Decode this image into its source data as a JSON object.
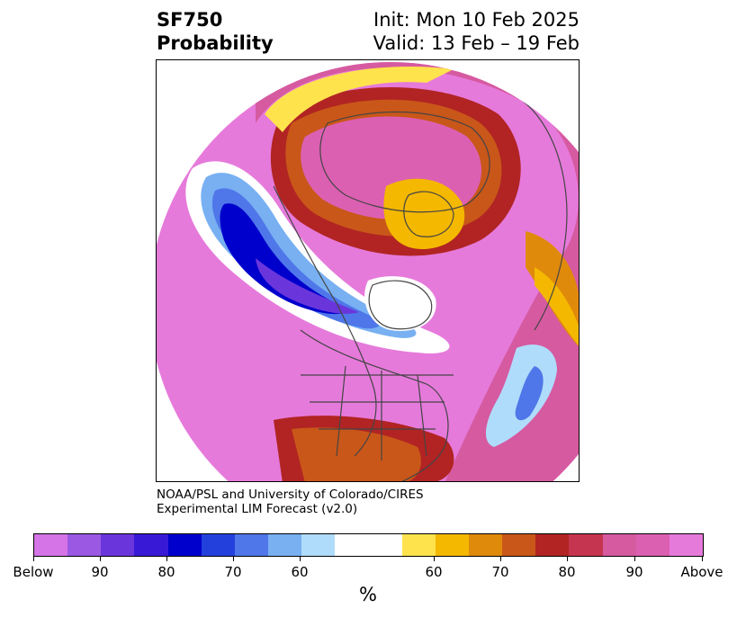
{
  "title": {
    "left_line1": "SF750",
    "left_line2": "Probability",
    "right_line1": "Init: Mon 10 Feb 2025",
    "right_line2": "Valid: 13 Feb – 19 Feb"
  },
  "credit": {
    "line1": "NOAA/PSL and University of Colorado/CIRES",
    "line2": "Experimental LIM Forecast (v2.0)"
  },
  "colorbar": {
    "unit": "%",
    "colors": [
      "#d474e6",
      "#9b59e3",
      "#6a36dc",
      "#3819d6",
      "#0000cc",
      "#2440dc",
      "#4f77e9",
      "#78b0f2",
      "#b0dcfb",
      "#ffffff",
      "#ffe34d",
      "#f4b800",
      "#e08a0c",
      "#c95719",
      "#b12423",
      "#c5354f",
      "#d65aa0",
      "#dc60b2",
      "#e67adb"
    ],
    "tick_labels": [
      "Below",
      "90",
      "80",
      "70",
      "60",
      "60",
      "70",
      "80",
      "90",
      "Above"
    ]
  },
  "map": {
    "colors": {
      "above": "#e67adb",
      "above_strong": "#d65aa0",
      "red": "#b12423",
      "orange": "#e08a0c",
      "yellow": "#f4b800",
      "below": "#0000cc",
      "below_light": "#78b0f2",
      "land_line": "#444444"
    }
  }
}
